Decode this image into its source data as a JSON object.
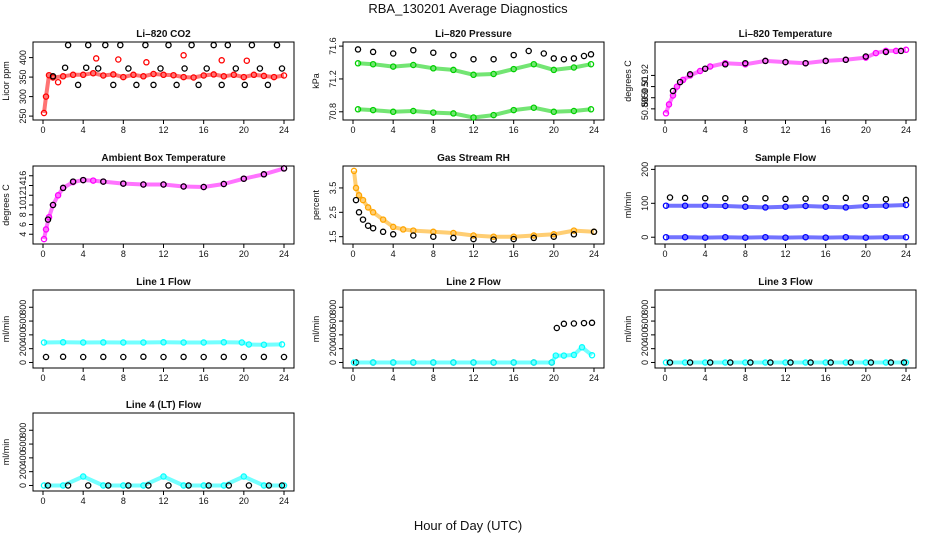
{
  "figure": {
    "title": "RBA_130201  Average Diagnostics",
    "xlabel": "Hour of Day (UTC)"
  },
  "chart_data": [
    {
      "type": "scatter",
      "title": "Li–820 CO2",
      "ylabel": "Licor ppm",
      "xlim": [
        0,
        24
      ],
      "ylim": [
        240,
        440
      ],
      "xticks": [
        0,
        4,
        8,
        12,
        16,
        20,
        24
      ],
      "yticks": [
        250,
        300,
        350,
        400
      ],
      "series": [
        {
          "name": "red",
          "color": "#ff0000",
          "x": [
            0.1,
            0.3,
            0.6,
            1,
            2,
            3,
            4,
            5,
            6,
            7,
            8,
            9,
            10,
            11,
            12,
            13,
            14,
            15,
            16,
            17,
            18,
            19,
            20,
            21,
            22,
            23,
            24
          ],
          "y": [
            258,
            300,
            355,
            349,
            352,
            356,
            356,
            360,
            354,
            357,
            350,
            356,
            352,
            358,
            356,
            355,
            350,
            349,
            354,
            357,
            352,
            356,
            350,
            356,
            353,
            350,
            354
          ]
        },
        {
          "name": "red-outliers",
          "color": "#ff0000",
          "x": [
            1.5,
            5.3,
            7.5,
            10.3,
            14.0,
            17.8,
            20.3
          ],
          "y": [
            337,
            398,
            395,
            388,
            406,
            393,
            392
          ]
        },
        {
          "name": "black",
          "color": "#000000",
          "x": [
            1.0,
            2.2,
            2.5,
            3.5,
            4.3,
            4.5,
            5.5,
            6.2,
            7.0,
            7.7,
            8.5,
            9.3,
            10.2,
            11.0,
            11.7,
            12.5,
            13.3,
            14.1,
            14.8,
            15.5,
            16.3,
            17.0,
            17.8,
            18.4,
            19.2,
            20.1,
            20.8,
            21.6,
            22.4,
            23.3,
            23.8
          ],
          "y": [
            352,
            374,
            432,
            330,
            374,
            432,
            372,
            432,
            330,
            432,
            372,
            330,
            432,
            330,
            372,
            432,
            330,
            372,
            432,
            330,
            372,
            432,
            330,
            432,
            372,
            330,
            432,
            372,
            330,
            432,
            372
          ]
        }
      ]
    },
    {
      "type": "scatter",
      "title": "Li–820 Pressure",
      "ylabel": "kPa",
      "xlim": [
        0,
        24
      ],
      "ylim": [
        70.7,
        71.65
      ],
      "xticks": [
        0,
        4,
        8,
        12,
        16,
        20,
        24
      ],
      "yticks": [
        70.8,
        71.2,
        71.6
      ],
      "series": [
        {
          "name": "black",
          "color": "#000000",
          "x": [
            0.5,
            2,
            4,
            6,
            8,
            10,
            12,
            14,
            16,
            17.5,
            19,
            20,
            21,
            22,
            23,
            23.7
          ],
          "y": [
            71.56,
            71.53,
            71.51,
            71.55,
            71.52,
            71.49,
            71.44,
            71.44,
            71.49,
            71.54,
            71.51,
            71.45,
            71.44,
            71.45,
            71.48,
            71.5
          ]
        },
        {
          "name": "green-upper",
          "color": "#00d000",
          "x": [
            0.5,
            2,
            4,
            6,
            8,
            10,
            12,
            14,
            16,
            18,
            20,
            22,
            23.7
          ],
          "y": [
            71.39,
            71.38,
            71.35,
            71.37,
            71.33,
            71.31,
            71.25,
            71.26,
            71.32,
            71.38,
            71.31,
            71.34,
            71.38
          ]
        },
        {
          "name": "green-lower",
          "color": "#00d000",
          "x": [
            0.5,
            2,
            4,
            6,
            8,
            10,
            12,
            14,
            16,
            18,
            20,
            22,
            23.7
          ],
          "y": [
            70.83,
            70.82,
            70.8,
            70.81,
            70.79,
            70.78,
            70.73,
            70.76,
            70.82,
            70.85,
            70.8,
            70.81,
            70.83
          ]
        }
      ]
    },
    {
      "type": "scatter",
      "title": "Li–820 Temperature",
      "ylabel": "degrees C",
      "xlim": [
        0,
        24
      ],
      "ylim": [
        50.88,
        50.95
      ],
      "xticks": [
        0,
        4,
        8,
        12,
        16,
        20,
        24
      ],
      "yticks": [
        50.89,
        50.9,
        50.91,
        50.92
      ],
      "series": [
        {
          "name": "magenta",
          "color": "#ff00ff",
          "x": [
            0.1,
            0.4,
            0.8,
            1.2,
            1.8,
            2.5,
            3.5,
            4.5,
            6,
            8,
            10,
            12,
            14,
            16,
            18,
            20,
            21,
            22,
            23,
            24
          ],
          "y": [
            50.886,
            50.894,
            50.902,
            50.91,
            50.916,
            50.92,
            50.924,
            50.928,
            50.931,
            50.93,
            50.933,
            50.932,
            50.931,
            50.933,
            50.934,
            50.936,
            50.94,
            50.942,
            50.942,
            50.943
          ]
        },
        {
          "name": "black",
          "color": "#000000",
          "x": [
            0.8,
            1.5,
            2.5,
            4,
            6,
            8,
            10,
            12,
            14,
            16,
            18,
            20,
            22,
            23.5
          ],
          "y": [
            50.906,
            50.914,
            50.921,
            50.926,
            50.93,
            50.931,
            50.933,
            50.932,
            50.931,
            50.933,
            50.934,
            50.937,
            50.941,
            50.942
          ]
        }
      ]
    },
    {
      "type": "scatter",
      "title": "Ambient Box Temperature",
      "ylabel": "degrees C",
      "xlim": [
        0,
        24
      ],
      "ylim": [
        2,
        18
      ],
      "xticks": [
        0,
        4,
        8,
        12,
        16,
        20,
        24
      ],
      "yticks": [
        4,
        6,
        8,
        10,
        12,
        14,
        16
      ],
      "series": [
        {
          "name": "magenta",
          "color": "#ff00ff",
          "x": [
            0.1,
            0.3,
            0.6,
            1,
            1.5,
            2,
            3,
            4,
            5,
            6,
            8,
            10,
            12,
            14,
            16,
            18,
            20,
            22,
            24
          ],
          "y": [
            3,
            5,
            7.5,
            10,
            12,
            13.5,
            14.7,
            15.1,
            15,
            14.8,
            14.4,
            14.2,
            14.2,
            13.8,
            13.7,
            14.3,
            15.4,
            16.3,
            17.5
          ]
        },
        {
          "name": "black",
          "color": "#000000",
          "x": [
            0.5,
            1,
            2,
            3,
            4,
            6,
            8,
            10,
            12,
            14,
            16,
            18,
            20,
            22,
            24
          ],
          "y": [
            7,
            10,
            13.5,
            14.8,
            15.1,
            14.8,
            14.4,
            14.2,
            14.2,
            13.8,
            13.7,
            14.3,
            15.4,
            16.3,
            17.5
          ]
        }
      ]
    },
    {
      "type": "scatter",
      "title": "Gas Stream RH",
      "ylabel": "percent",
      "xlim": [
        0,
        24
      ],
      "ylim": [
        1.2,
        4.4
      ],
      "xticks": [
        0,
        4,
        8,
        12,
        16,
        20,
        24
      ],
      "yticks": [
        1.5,
        2.5,
        3.5
      ],
      "series": [
        {
          "name": "orange",
          "color": "#ffa500",
          "x": [
            0.1,
            0.3,
            0.6,
            1,
            1.5,
            2,
            3,
            4,
            5,
            6,
            8,
            10,
            12,
            14,
            16,
            18,
            20,
            22,
            24
          ],
          "y": [
            4.2,
            3.5,
            3.2,
            3.0,
            2.7,
            2.5,
            2.2,
            1.9,
            1.8,
            1.75,
            1.7,
            1.65,
            1.55,
            1.5,
            1.5,
            1.55,
            1.6,
            1.75,
            1.7
          ]
        },
        {
          "name": "black",
          "color": "#000000",
          "x": [
            0.3,
            0.6,
            1,
            1.5,
            2,
            3,
            4,
            6,
            8,
            10,
            12,
            14,
            16,
            18,
            20,
            22,
            24
          ],
          "y": [
            3.0,
            2.5,
            2.2,
            1.95,
            1.85,
            1.7,
            1.6,
            1.55,
            1.5,
            1.45,
            1.4,
            1.38,
            1.4,
            1.45,
            1.5,
            1.6,
            1.7
          ]
        }
      ]
    },
    {
      "type": "scatter",
      "title": "Sample Flow",
      "ylabel": "ml/min",
      "xlim": [
        0,
        24
      ],
      "ylim": [
        -20,
        210
      ],
      "xticks": [
        0,
        4,
        8,
        12,
        16,
        20,
        24
      ],
      "yticks": [
        0,
        100,
        200
      ],
      "series": [
        {
          "name": "black",
          "color": "#000000",
          "x": [
            0.5,
            2,
            4,
            6,
            8,
            10,
            12,
            14,
            16,
            18,
            20,
            22,
            24
          ],
          "y": [
            117,
            116,
            115,
            115,
            114,
            115,
            113,
            114,
            115,
            116,
            115,
            112,
            110
          ]
        },
        {
          "name": "blue-upper",
          "color": "#0000ff",
          "x": [
            0.1,
            2,
            4,
            6,
            8,
            10,
            12,
            14,
            16,
            18,
            20,
            22,
            24
          ],
          "y": [
            93,
            93,
            93,
            92,
            90,
            88,
            90,
            92,
            90,
            88,
            92,
            93,
            95
          ]
        },
        {
          "name": "blue-lower",
          "color": "#0000ff",
          "x": [
            0.1,
            2,
            4,
            6,
            8,
            10,
            12,
            14,
            16,
            18,
            20,
            22,
            24
          ],
          "y": [
            0,
            0,
            -1,
            0,
            -1,
            0,
            -1,
            0,
            -1,
            0,
            -1,
            0,
            0
          ]
        }
      ]
    },
    {
      "type": "scatter",
      "title": "Line 1 Flow",
      "ylabel": "ml/min",
      "xlim": [
        0,
        24
      ],
      "ylim": [
        -80,
        1050
      ],
      "xticks": [
        0,
        4,
        8,
        12,
        16,
        20,
        24
      ],
      "yticks": [
        0,
        200,
        400,
        600,
        800
      ],
      "series": [
        {
          "name": "cyan",
          "color": "#00ffff",
          "x": [
            0.1,
            2,
            4,
            6,
            8,
            10,
            12,
            14,
            16,
            18,
            19.8,
            20.5,
            22,
            23.8
          ],
          "y": [
            290,
            292,
            290,
            291,
            289,
            290,
            292,
            289,
            290,
            292,
            290,
            260,
            258,
            262
          ]
        },
        {
          "name": "black",
          "color": "#000000",
          "x": [
            0.3,
            2,
            4,
            6,
            8,
            10,
            12,
            14,
            16,
            18,
            20,
            22,
            24
          ],
          "y": [
            80,
            82,
            80,
            81,
            80,
            82,
            80,
            81,
            80,
            81,
            80,
            81,
            80
          ]
        }
      ]
    },
    {
      "type": "scatter",
      "title": "Line 2 Flow",
      "ylabel": "ml/min",
      "xlim": [
        0,
        24
      ],
      "ylim": [
        -80,
        1050
      ],
      "xticks": [
        0,
        4,
        8,
        12,
        16,
        20,
        24
      ],
      "yticks": [
        0,
        200,
        400,
        600,
        800
      ],
      "series": [
        {
          "name": "black",
          "color": "#000000",
          "x": [
            0.3,
            2,
            4,
            6,
            8,
            10,
            12,
            14,
            16,
            18,
            19.8,
            20.3,
            21,
            22,
            23,
            23.8
          ],
          "y": [
            0,
            0,
            0,
            0,
            0,
            0,
            0,
            0,
            0,
            0,
            0,
            500,
            560,
            565,
            570,
            575
          ]
        },
        {
          "name": "cyan",
          "color": "#00ffff",
          "x": [
            0.1,
            2,
            4,
            6,
            8,
            10,
            12,
            14,
            16,
            18,
            19.8,
            20.2,
            21,
            22,
            22.8,
            23.8
          ],
          "y": [
            0,
            0,
            0,
            0,
            0,
            0,
            0,
            0,
            0,
            0,
            0,
            100,
            100,
            110,
            220,
            105
          ]
        }
      ]
    },
    {
      "type": "scatter",
      "title": "Line 3 Flow",
      "ylabel": "ml/min",
      "xlim": [
        0,
        24
      ],
      "ylim": [
        -80,
        1050
      ],
      "xticks": [
        0,
        4,
        8,
        12,
        16,
        20,
        24
      ],
      "yticks": [
        0,
        200,
        400,
        600,
        800
      ],
      "series": [
        {
          "name": "cyan",
          "color": "#00ffff",
          "x": [
            0.1,
            2,
            4,
            6,
            8,
            10,
            12,
            14,
            16,
            18,
            20,
            22,
            24
          ],
          "y": [
            0,
            0,
            0,
            0,
            0,
            0,
            0,
            0,
            0,
            0,
            0,
            0,
            0
          ]
        },
        {
          "name": "black",
          "color": "#000000",
          "x": [
            0.5,
            2.5,
            4.5,
            6.5,
            8.5,
            10.5,
            12.5,
            14.5,
            16.5,
            18.5,
            20.5,
            22.5,
            23.8
          ],
          "y": [
            0,
            0,
            0,
            0,
            0,
            0,
            0,
            0,
            0,
            0,
            0,
            0,
            0
          ]
        }
      ]
    },
    {
      "type": "scatter",
      "title": "Line 4 (LT) Flow",
      "ylabel": "ml/min",
      "xlim": [
        0,
        24
      ],
      "ylim": [
        -80,
        1050
      ],
      "xticks": [
        0,
        4,
        8,
        12,
        16,
        20,
        24
      ],
      "yticks": [
        0,
        200,
        400,
        600,
        800
      ],
      "series": [
        {
          "name": "cyan",
          "color": "#00ffff",
          "x": [
            0.1,
            2,
            4,
            6,
            8,
            10,
            12,
            14,
            16,
            18,
            20,
            22,
            24
          ],
          "y": [
            0,
            0,
            130,
            0,
            0,
            0,
            130,
            0,
            0,
            0,
            130,
            0,
            0
          ]
        },
        {
          "name": "black",
          "color": "#000000",
          "x": [
            0.5,
            2.5,
            4.5,
            6.5,
            8.5,
            10.5,
            12.5,
            14.5,
            16.5,
            18.5,
            20.5,
            22.5,
            23.8
          ],
          "y": [
            0,
            0,
            0,
            0,
            0,
            0,
            0,
            0,
            0,
            0,
            0,
            0,
            0
          ]
        }
      ]
    }
  ]
}
